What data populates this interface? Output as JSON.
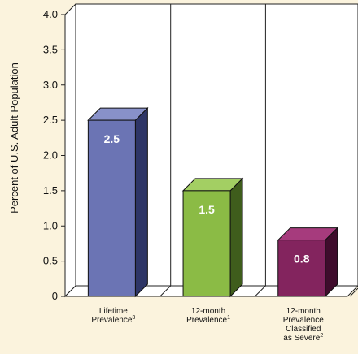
{
  "chart_data": {
    "type": "bar",
    "ylabel": "Percent of U.S. Adult Population",
    "ylim": [
      0,
      4.0
    ],
    "yticks": [
      "0",
      "0.5",
      "1.0",
      "1.5",
      "2.0",
      "2.5",
      "3.0",
      "3.5",
      "4.0"
    ],
    "categories": [
      {
        "lines": [
          "Lifetime",
          "Prevalence"
        ],
        "footnote": "3"
      },
      {
        "lines": [
          "12-month",
          "Prevalence"
        ],
        "footnote": "1"
      },
      {
        "lines": [
          "12-month",
          "Prevalence",
          "Classified",
          "as Severe"
        ],
        "footnote": "2"
      }
    ],
    "values": [
      2.5,
      1.5,
      0.8
    ],
    "data_labels": [
      "2.5",
      "1.5",
      "0.8"
    ],
    "bar_colors": [
      {
        "front": "#6b74b4",
        "top": "#8891c9",
        "side": "#2e3566"
      },
      {
        "front": "#8bbb45",
        "top": "#a3cf63",
        "side": "#3f5d1c"
      },
      {
        "front": "#83245e",
        "top": "#a63b7d",
        "side": "#3f0c2c"
      }
    ],
    "grid": "vertical separators only",
    "legend": "none"
  }
}
